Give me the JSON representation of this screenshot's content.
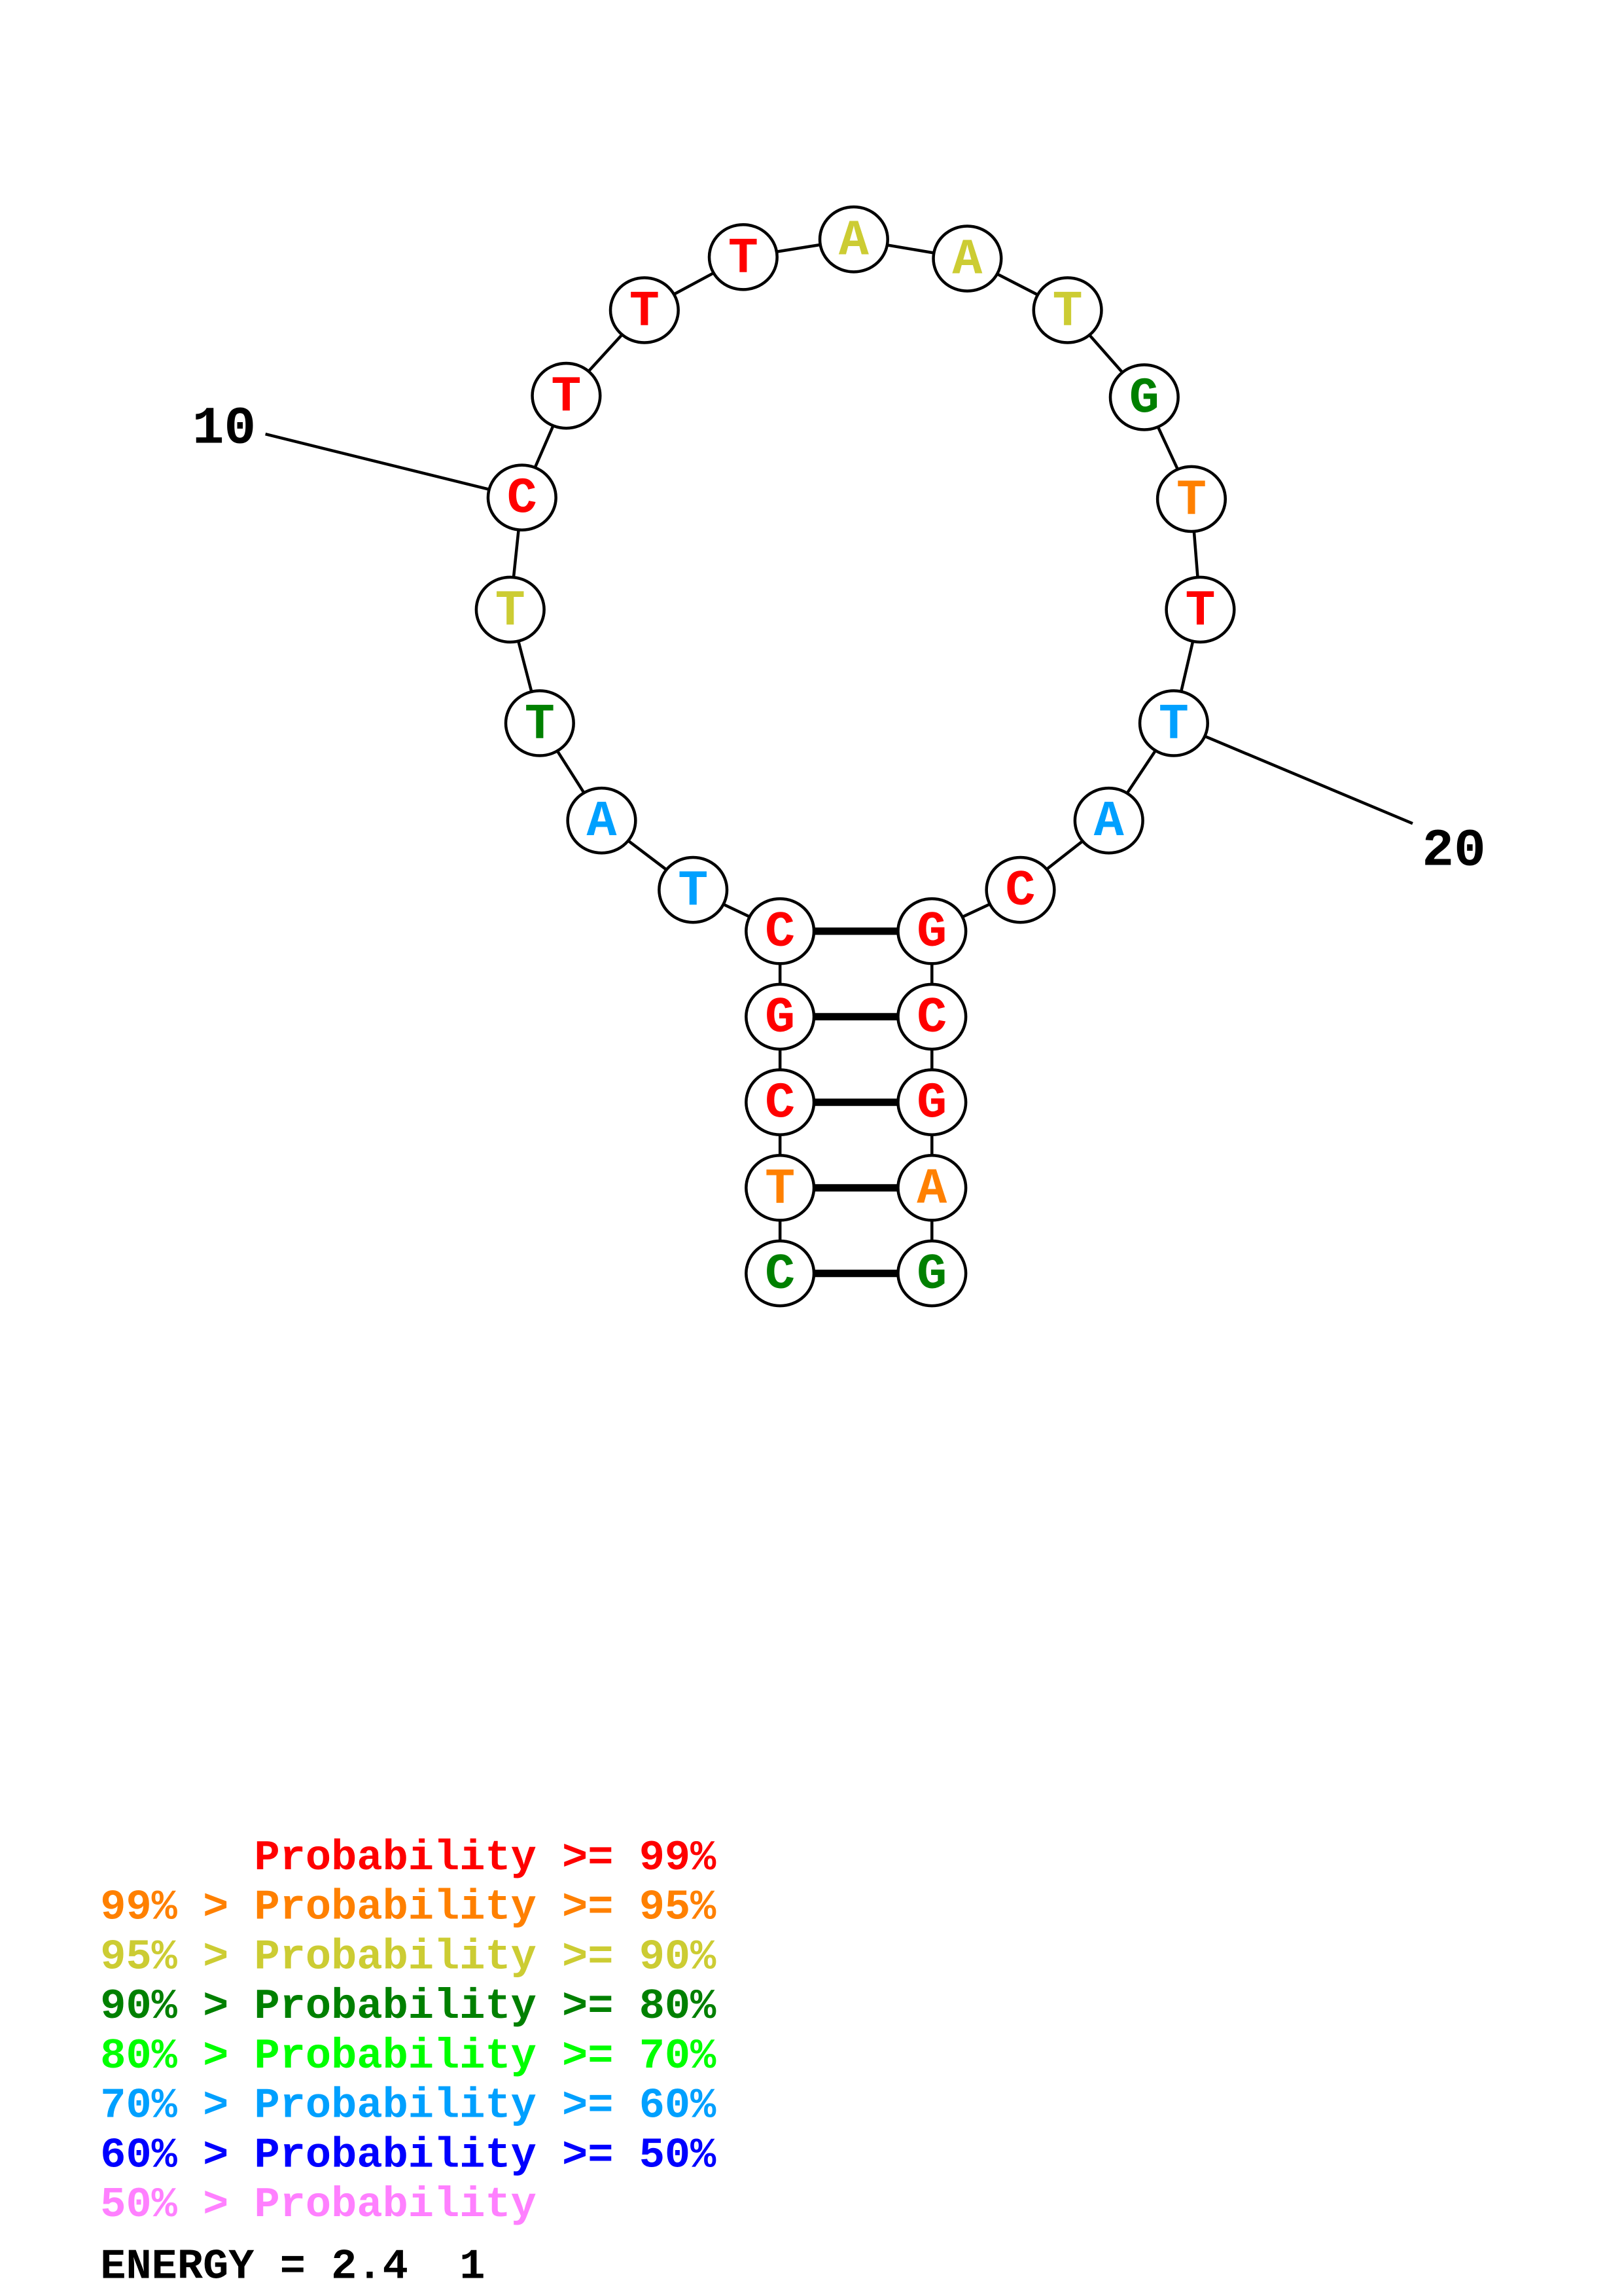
{
  "structure": {
    "sequence": [
      "C",
      "T",
      "C",
      "G",
      "C",
      "T",
      "A",
      "T",
      "T",
      "C",
      "T",
      "T",
      "T",
      "A",
      "A",
      "T",
      "G",
      "T",
      "T",
      "T",
      "A",
      "C",
      "G",
      "C",
      "G",
      "A",
      "G"
    ],
    "probability_class": [
      3,
      1,
      0,
      0,
      0,
      5,
      5,
      3,
      2,
      0,
      0,
      0,
      0,
      2,
      2,
      2,
      3,
      1,
      0,
      5,
      5,
      0,
      0,
      0,
      0,
      1,
      3
    ],
    "pairs": [
      [
        1,
        27
      ],
      [
        2,
        26
      ],
      [
        3,
        25
      ],
      [
        4,
        24
      ],
      [
        5,
        23
      ]
    ],
    "position_labels": [
      {
        "index": 10,
        "text": "10"
      },
      {
        "index": 20,
        "text": "20"
      }
    ]
  },
  "legend": {
    "classes": [
      {
        "prefix": "    ",
        "label": "Probability >= 99%",
        "color": "#ff0000"
      },
      {
        "prefix": "99% > ",
        "label": "Probability >= 95%",
        "color": "#ff8000"
      },
      {
        "prefix": "95% > ",
        "label": "Probability >= 90%",
        "color": "#cccc33"
      },
      {
        "prefix": "90% > ",
        "label": "Probability >= 80%",
        "color": "#008000"
      },
      {
        "prefix": "80% > ",
        "label": "Probability >= 70%",
        "color": "#00ff00"
      },
      {
        "prefix": "70% > ",
        "label": "Probability >= 60%",
        "color": "#00a0ff"
      },
      {
        "prefix": "60% > ",
        "label": "Probability >= 50%",
        "color": "#0000ff"
      },
      {
        "prefix": "50% > ",
        "label": "Probability",
        "color": "#ff80ff"
      }
    ],
    "energy_text": "ENERGY = 2.4  1"
  }
}
